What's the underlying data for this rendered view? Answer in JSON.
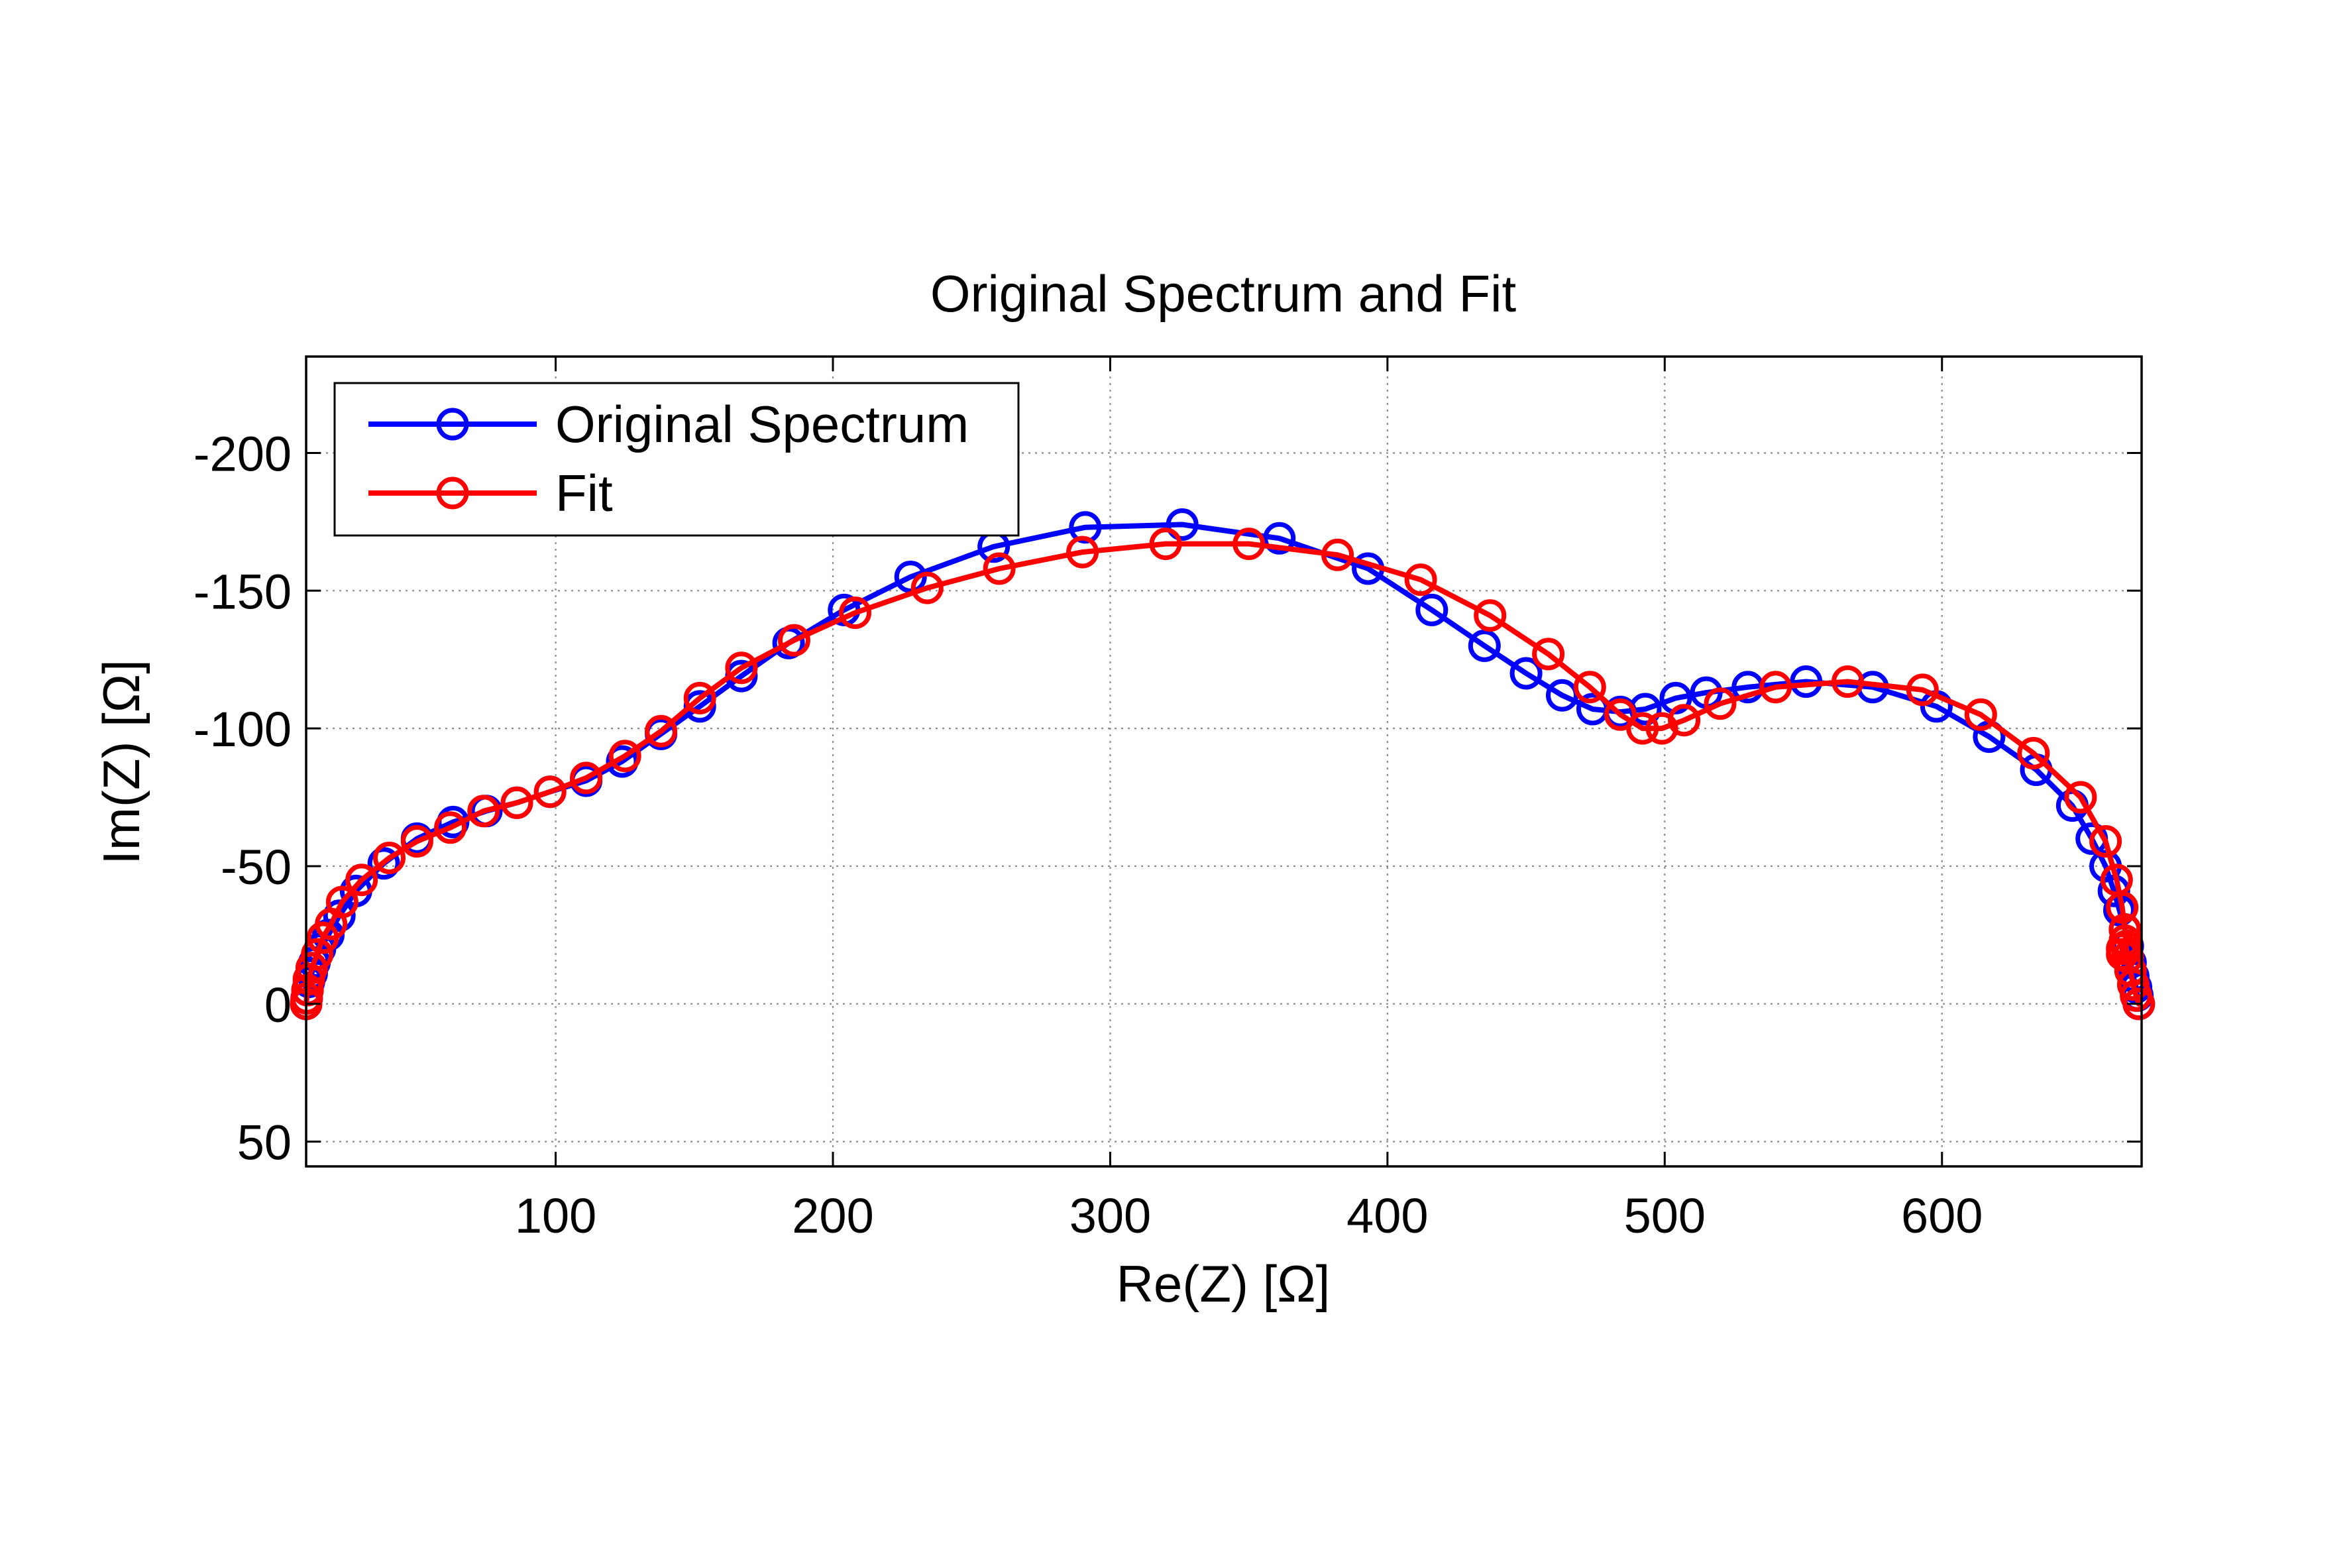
{
  "chart_data": {
    "type": "line",
    "title": "Original Spectrum and Fit",
    "xlabel": "Re(Z) [Ω]",
    "ylabel": "Im(Z) [Ω]",
    "xlim": [
      10,
      672
    ],
    "ylim": [
      -235,
      59
    ],
    "y_reversed": true,
    "grid": true,
    "legend_position": "top-left",
    "x_ticks": [
      100,
      200,
      300,
      400,
      500,
      600
    ],
    "x_tick_labels": [
      "100",
      "200",
      "300",
      "400",
      "500",
      "600"
    ],
    "y_ticks": [
      -200,
      -150,
      -100,
      -50,
      0,
      50
    ],
    "y_tick_labels": [
      "-200",
      "-150",
      "-100",
      "-50",
      "0",
      "50"
    ],
    "series": [
      {
        "name": "Original Spectrum",
        "color": "#0000ff",
        "marker": "circle-open",
        "points": [
          [
            10,
            0
          ],
          [
            10.2,
            -2
          ],
          [
            10.5,
            -5
          ],
          [
            11,
            -8
          ],
          [
            12,
            -11
          ],
          [
            13,
            -15
          ],
          [
            15,
            -20
          ],
          [
            18,
            -25
          ],
          [
            22,
            -32
          ],
          [
            28,
            -41
          ],
          [
            38,
            -51
          ],
          [
            50,
            -60
          ],
          [
            63,
            -66
          ],
          [
            75,
            -70
          ],
          [
            86,
            -73
          ],
          [
            98,
            -77
          ],
          [
            111,
            -81
          ],
          [
            124,
            -88
          ],
          [
            138,
            -98
          ],
          [
            152,
            -108
          ],
          [
            167,
            -119
          ],
          [
            184,
            -131
          ],
          [
            204,
            -143
          ],
          [
            228,
            -155
          ],
          [
            258,
            -166
          ],
          [
            291,
            -173
          ],
          [
            326,
            -174
          ],
          [
            361,
            -169
          ],
          [
            393,
            -158
          ],
          [
            416,
            -143
          ],
          [
            435,
            -130
          ],
          [
            450,
            -120
          ],
          [
            463,
            -112
          ],
          [
            474,
            -107
          ],
          [
            484,
            -106
          ],
          [
            493,
            -107
          ],
          [
            504,
            -111
          ],
          [
            515,
            -113
          ],
          [
            530,
            -115
          ],
          [
            551,
            -117
          ],
          [
            575,
            -115
          ],
          [
            598,
            -108
          ],
          [
            617,
            -97
          ],
          [
            634,
            -85
          ],
          [
            647,
            -72
          ],
          [
            654,
            -60
          ],
          [
            659,
            -50
          ],
          [
            662,
            -41
          ],
          [
            664,
            -34
          ],
          [
            666,
            -27
          ],
          [
            667,
            -21
          ],
          [
            668,
            -15
          ],
          [
            669,
            -10
          ],
          [
            670,
            -6
          ],
          [
            670.5,
            -3
          ],
          [
            671,
            0
          ]
        ]
      },
      {
        "name": "Fit",
        "color": "#ff0000",
        "marker": "circle-open",
        "points": [
          [
            10,
            0
          ],
          [
            10.2,
            -2
          ],
          [
            10.5,
            -5
          ],
          [
            11,
            -9
          ],
          [
            12,
            -13
          ],
          [
            14,
            -18
          ],
          [
            16,
            -24
          ],
          [
            19,
            -29
          ],
          [
            23,
            -37
          ],
          [
            30,
            -45
          ],
          [
            40,
            -53
          ],
          [
            50,
            -59
          ],
          [
            62,
            -64
          ],
          [
            74,
            -70
          ],
          [
            86,
            -73
          ],
          [
            98,
            -77
          ],
          [
            111,
            -82
          ],
          [
            125,
            -90
          ],
          [
            138,
            -99
          ],
          [
            152,
            -111
          ],
          [
            167,
            -122
          ],
          [
            186,
            -132
          ],
          [
            208,
            -142
          ],
          [
            234,
            -151
          ],
          [
            260,
            -158
          ],
          [
            290,
            -164
          ],
          [
            320,
            -167
          ],
          [
            350,
            -167
          ],
          [
            382,
            -163
          ],
          [
            412,
            -154
          ],
          [
            437,
            -141
          ],
          [
            458,
            -127
          ],
          [
            473,
            -115
          ],
          [
            484,
            -105
          ],
          [
            492,
            -100
          ],
          [
            499,
            -100
          ],
          [
            507,
            -103
          ],
          [
            520,
            -109
          ],
          [
            540,
            -115
          ],
          [
            566,
            -117
          ],
          [
            593,
            -114
          ],
          [
            614,
            -105
          ],
          [
            633,
            -91
          ],
          [
            650,
            -75
          ],
          [
            659,
            -59
          ],
          [
            663,
            -45
          ],
          [
            665,
            -35
          ],
          [
            666,
            -27
          ],
          [
            666.5,
            -21
          ],
          [
            665,
            -18
          ],
          [
            665,
            -20
          ],
          [
            666,
            -23
          ],
          [
            667,
            -17
          ],
          [
            668,
            -12
          ],
          [
            669,
            -7
          ],
          [
            670,
            -3
          ],
          [
            671,
            0
          ]
        ]
      }
    ]
  }
}
